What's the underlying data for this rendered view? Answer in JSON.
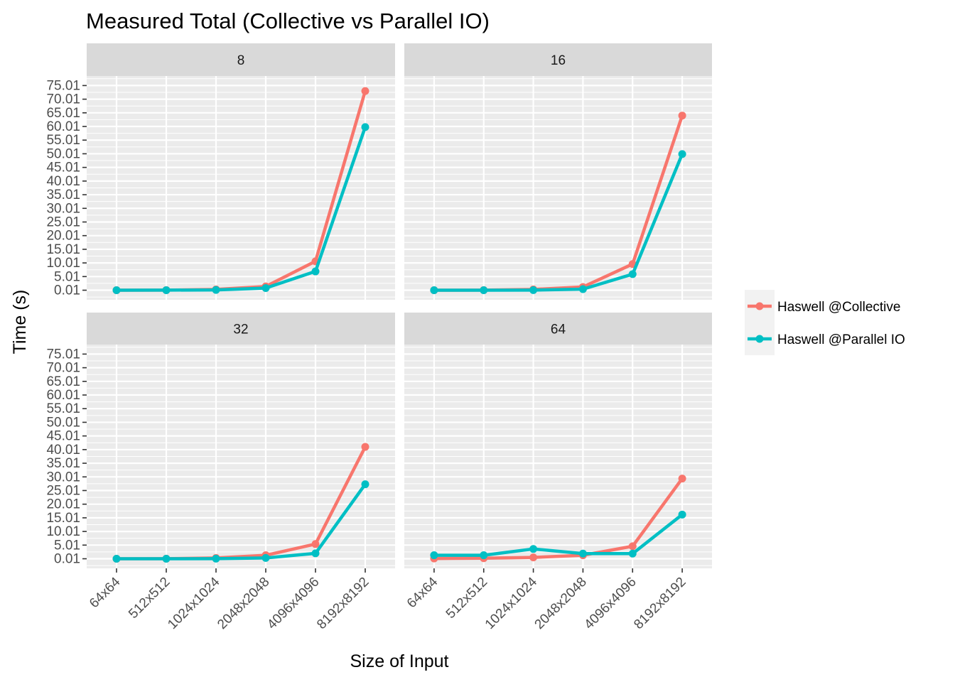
{
  "chart_data": {
    "type": "line",
    "title": "Measured Total (Collective vs Parallel IO)",
    "xlabel": "Size of Input",
    "ylabel": "Time (s)",
    "categories": [
      "64x64",
      "512x512",
      "1024x1024",
      "2048x2048",
      "4096x4096",
      "8192x8192"
    ],
    "y_ticks": [
      "0.01",
      "5.01",
      "10.01",
      "15.01",
      "20.01",
      "25.01",
      "30.01",
      "35.01",
      "40.01",
      "45.01",
      "50.01",
      "55.01",
      "60.01",
      "65.01",
      "70.01",
      "75.01"
    ],
    "ylim": [
      -3.5,
      78.5
    ],
    "grid": true,
    "legend_position": "right",
    "colors": {
      "Haswell @Collective": "#f8766d",
      "Haswell @Parallel IO": "#00bfc4"
    },
    "legend": [
      "Haswell @Collective",
      "Haswell @Parallel IO"
    ],
    "panels": [
      {
        "label": "8",
        "series": [
          {
            "name": "Haswell @Collective",
            "values": [
              0.01,
              0.05,
              0.3,
              1.4,
              10.6,
              73.0
            ]
          },
          {
            "name": "Haswell @Parallel IO",
            "values": [
              0.01,
              0.03,
              0.12,
              0.8,
              6.9,
              59.8
            ]
          }
        ]
      },
      {
        "label": "16",
        "series": [
          {
            "name": "Haswell @Collective",
            "values": [
              0.01,
              0.05,
              0.3,
              1.2,
              9.6,
              64.0
            ]
          },
          {
            "name": "Haswell @Parallel IO",
            "values": [
              0.01,
              0.02,
              0.05,
              0.4,
              5.9,
              49.9
            ]
          }
        ]
      },
      {
        "label": "32",
        "series": [
          {
            "name": "Haswell @Collective",
            "values": [
              0.01,
              0.05,
              0.3,
              1.3,
              5.4,
              41.0
            ]
          },
          {
            "name": "Haswell @Parallel IO",
            "values": [
              0.01,
              0.02,
              0.05,
              0.3,
              2.0,
              27.3
            ]
          }
        ]
      },
      {
        "label": "64",
        "series": [
          {
            "name": "Haswell @Collective",
            "values": [
              0.1,
              0.2,
              0.5,
              1.3,
              4.6,
              29.4
            ]
          },
          {
            "name": "Haswell @Parallel IO",
            "values": [
              1.3,
              1.3,
              3.6,
              1.9,
              1.9,
              16.2
            ]
          }
        ]
      }
    ]
  }
}
